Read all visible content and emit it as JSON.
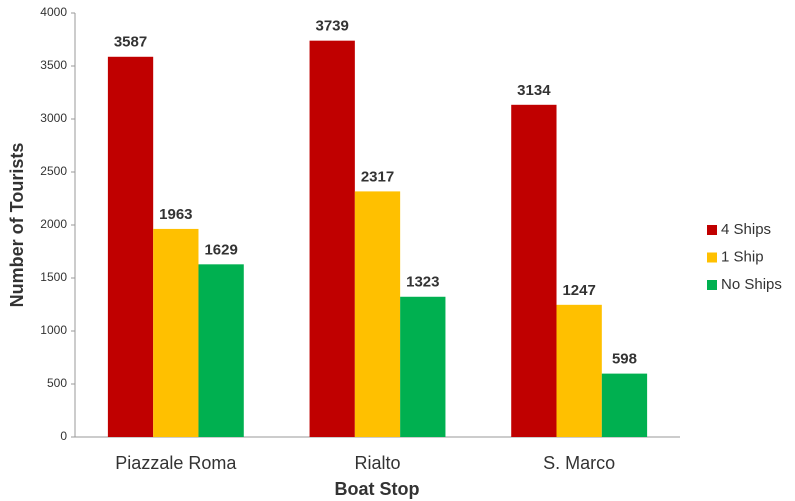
{
  "chart_data": {
    "type": "bar",
    "categories": [
      "Piazzale Roma",
      "Rialto",
      "S. Marco"
    ],
    "series": [
      {
        "name": "4 Ships",
        "color": "#c00000",
        "values": [
          3587,
          3739,
          3134
        ]
      },
      {
        "name": "1 Ship",
        "color": "#ffc000",
        "values": [
          1963,
          2317,
          1247
        ]
      },
      {
        "name": "No Ships",
        "color": "#00b050",
        "values": [
          1629,
          1323,
          598
        ]
      }
    ],
    "x_label": "Boat Stop",
    "y_label": "Number of Tourists",
    "ylim": [
      0,
      4000
    ],
    "yticks": [
      0,
      500,
      1000,
      1500,
      2000,
      2500,
      3000,
      3500,
      4000
    ],
    "grid": false,
    "legend": "right"
  }
}
